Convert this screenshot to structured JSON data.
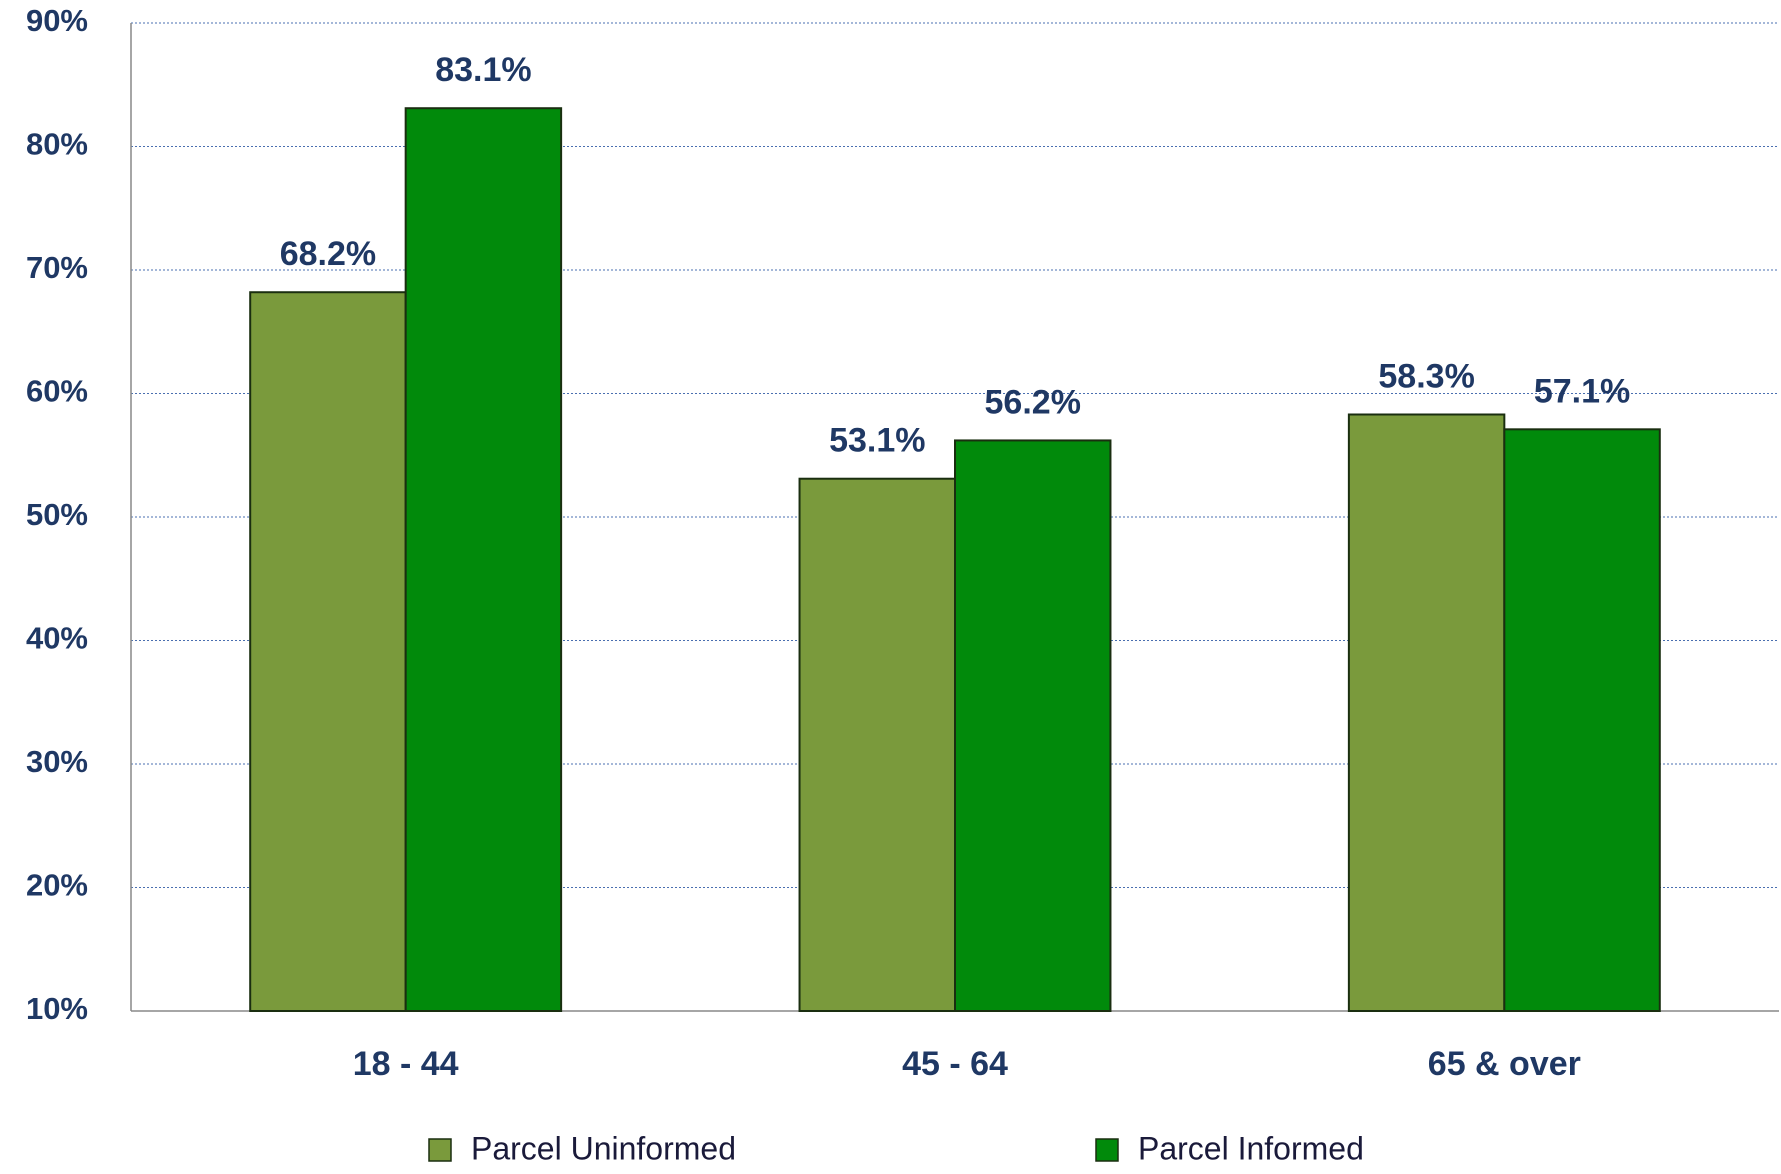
{
  "chart_data": {
    "type": "bar",
    "categories": [
      "18 - 44",
      "45 - 64",
      "65 & over"
    ],
    "series": [
      {
        "name": "Parcel Uninformed",
        "color": "#7a9a3c",
        "values": [
          68.2,
          53.1,
          58.3
        ],
        "value_labels": [
          "68.2%",
          "53.1%",
          "58.3%"
        ]
      },
      {
        "name": "Parcel Informed",
        "color": "#018a0b",
        "values": [
          83.1,
          56.2,
          57.1
        ],
        "value_labels": [
          "83.1%",
          "56.2%",
          "57.1%"
        ]
      }
    ],
    "ylim": [
      10,
      90
    ],
    "yticks": [
      {
        "value": 10,
        "label": "10%"
      },
      {
        "value": 20,
        "label": "20%"
      },
      {
        "value": 30,
        "label": "30%"
      },
      {
        "value": 40,
        "label": "40%"
      },
      {
        "value": 50,
        "label": "50%"
      },
      {
        "value": 60,
        "label": "60%"
      },
      {
        "value": 70,
        "label": "70%"
      },
      {
        "value": 80,
        "label": "80%"
      },
      {
        "value": 90,
        "label": "90%"
      }
    ],
    "grid": true
  }
}
